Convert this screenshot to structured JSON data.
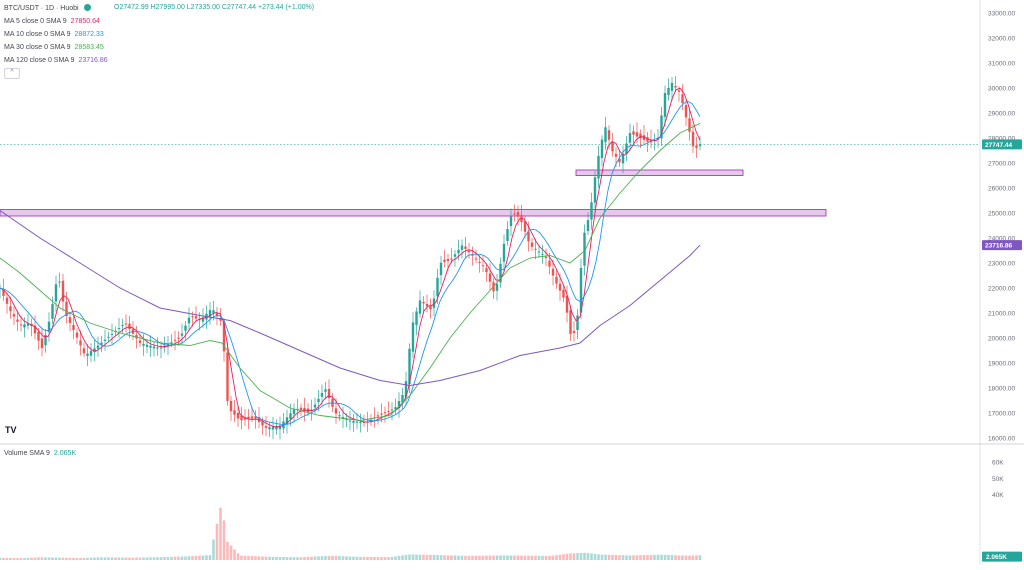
{
  "header": {
    "symbol": "BTC/USDT · 1D · Huobi",
    "ohlc": "O27472.99 H27995.00 L27335.00 C27747.44 +273.44 (+1.00%)"
  },
  "indicators": [
    {
      "label": "MA 5 close 0 SMA 9",
      "value": "27850.64",
      "color": "#e91e63"
    },
    {
      "label": "MA 10 close 0 SMA 9",
      "value": "28872.33",
      "color": "#2196f3"
    },
    {
      "label": "MA 30 close 0 SMA 9",
      "value": "28583.45",
      "color": "#4caf50"
    },
    {
      "label": "MA 120 close 0 SMA 9",
      "value": "23716.86",
      "color": "#7e57c2"
    }
  ],
  "volume_label": "Volume SMA 9",
  "volume_value": "2.065K",
  "logo_text": "TV",
  "colors": {
    "up": "#26a69a",
    "down": "#ef5350",
    "zone_fill": "#e1bee7",
    "zone_stroke": "#9c27b0",
    "price_badge": "#26a69a",
    "ma120_badge": "#7e57c2"
  },
  "chart_data": {
    "type": "candlestick",
    "price_ylim": [
      16000,
      33000
    ],
    "price_ticks": [
      "33000.00",
      "32000.00",
      "31000.00",
      "30000.00",
      "29000.00",
      "28000.00",
      "27000.00",
      "26000.00",
      "25000.00",
      "24000.00",
      "23000.00",
      "22000.00",
      "21000.00",
      "20000.00",
      "19000.00",
      "18000.00",
      "17000.00",
      "16000.00"
    ],
    "last_price": "27747.44",
    "ma120_last": "23716.86",
    "volume_ylim": [
      0,
      60000
    ],
    "volume_ticks": [
      "60K",
      "50K",
      "40K",
      "2.065K"
    ],
    "ma120_path": [
      [
        0,
        25100
      ],
      [
        40,
        24000
      ],
      [
        80,
        23000
      ],
      [
        120,
        22000
      ],
      [
        160,
        21200
      ],
      [
        200,
        20900
      ],
      [
        230,
        20700
      ],
      [
        260,
        20200
      ],
      [
        300,
        19500
      ],
      [
        340,
        18800
      ],
      [
        380,
        18300
      ],
      [
        410,
        18100
      ],
      [
        440,
        18300
      ],
      [
        480,
        18700
      ],
      [
        520,
        19300
      ],
      [
        560,
        19600
      ],
      [
        580,
        19800
      ],
      [
        600,
        20500
      ],
      [
        630,
        21300
      ],
      [
        660,
        22300
      ],
      [
        690,
        23300
      ],
      [
        700,
        23716.86
      ]
    ],
    "zones": [
      {
        "x_start": 0,
        "x_end": 826,
        "low": 24880,
        "high": 25140
      },
      {
        "x_start": 576,
        "x_end": 743,
        "low": 26500,
        "high": 26720
      }
    ],
    "close_path": [
      [
        0,
        22000
      ],
      [
        10,
        21100
      ],
      [
        20,
        20500
      ],
      [
        30,
        20600
      ],
      [
        42,
        19600
      ],
      [
        50,
        20800
      ],
      [
        58,
        22600
      ],
      [
        65,
        21000
      ],
      [
        75,
        20200
      ],
      [
        85,
        19300
      ],
      [
        95,
        19600
      ],
      [
        110,
        20100
      ],
      [
        125,
        20600
      ],
      [
        140,
        19800
      ],
      [
        160,
        19600
      ],
      [
        180,
        20000
      ],
      [
        190,
        20900
      ],
      [
        200,
        20700
      ],
      [
        212,
        21200
      ],
      [
        222,
        20600
      ],
      [
        228,
        17200
      ],
      [
        240,
        16700
      ],
      [
        255,
        16800
      ],
      [
        265,
        16400
      ],
      [
        280,
        16500
      ],
      [
        295,
        17200
      ],
      [
        310,
        17000
      ],
      [
        325,
        18000
      ],
      [
        335,
        17000
      ],
      [
        350,
        16700
      ],
      [
        365,
        16600
      ],
      [
        380,
        16900
      ],
      [
        395,
        17200
      ],
      [
        405,
        17900
      ],
      [
        412,
        20500
      ],
      [
        420,
        21500
      ],
      [
        432,
        21100
      ],
      [
        440,
        23000
      ],
      [
        450,
        23100
      ],
      [
        462,
        23700
      ],
      [
        475,
        23200
      ],
      [
        485,
        22800
      ],
      [
        495,
        21700
      ],
      [
        505,
        24000
      ],
      [
        512,
        25000
      ],
      [
        520,
        24800
      ],
      [
        530,
        23700
      ],
      [
        545,
        23300
      ],
      [
        555,
        22300
      ],
      [
        565,
        21500
      ],
      [
        572,
        19800
      ],
      [
        578,
        21000
      ],
      [
        583,
        24000
      ],
      [
        590,
        25000
      ],
      [
        597,
        27000
      ],
      [
        605,
        28500
      ],
      [
        612,
        27500
      ],
      [
        620,
        27000
      ],
      [
        630,
        28200
      ],
      [
        640,
        28000
      ],
      [
        650,
        27800
      ],
      [
        658,
        28000
      ],
      [
        665,
        29800
      ],
      [
        672,
        30200
      ],
      [
        680,
        29800
      ],
      [
        688,
        28500
      ],
      [
        694,
        27500
      ],
      [
        700,
        27747.44
      ]
    ],
    "ma30_path": [
      [
        0,
        23200
      ],
      [
        20,
        22600
      ],
      [
        40,
        21900
      ],
      [
        60,
        21200
      ],
      [
        90,
        20600
      ],
      [
        120,
        20200
      ],
      [
        160,
        19800
      ],
      [
        190,
        19700
      ],
      [
        210,
        19900
      ],
      [
        222,
        19800
      ],
      [
        240,
        18800
      ],
      [
        260,
        17900
      ],
      [
        290,
        17200
      ],
      [
        320,
        16900
      ],
      [
        360,
        16700
      ],
      [
        390,
        16900
      ],
      [
        410,
        17700
      ],
      [
        430,
        18800
      ],
      [
        450,
        20000
      ],
      [
        470,
        21000
      ],
      [
        490,
        21900
      ],
      [
        510,
        22800
      ],
      [
        530,
        23200
      ],
      [
        550,
        23300
      ],
      [
        570,
        23000
      ],
      [
        585,
        23500
      ],
      [
        600,
        24800
      ],
      [
        620,
        25800
      ],
      [
        640,
        26700
      ],
      [
        660,
        27500
      ],
      [
        680,
        28200
      ],
      [
        700,
        28583.45
      ]
    ],
    "volume": [
      [
        0,
        2200
      ],
      [
        20,
        1800
      ],
      [
        40,
        2500
      ],
      [
        60,
        2000
      ],
      [
        80,
        1600
      ],
      [
        100,
        2100
      ],
      [
        130,
        1700
      ],
      [
        160,
        1900
      ],
      [
        190,
        2400
      ],
      [
        210,
        3000
      ],
      [
        222,
        36000
      ],
      [
        226,
        12000
      ],
      [
        240,
        2600
      ],
      [
        270,
        1800
      ],
      [
        300,
        1500
      ],
      [
        330,
        2200
      ],
      [
        360,
        1600
      ],
      [
        390,
        1400
      ],
      [
        410,
        2700
      ],
      [
        440,
        2300
      ],
      [
        470,
        1900
      ],
      [
        500,
        2100
      ],
      [
        520,
        2000
      ],
      [
        550,
        1800
      ],
      [
        570,
        2900
      ],
      [
        585,
        3200
      ],
      [
        600,
        2400
      ],
      [
        630,
        2000
      ],
      [
        660,
        2300
      ],
      [
        690,
        1900
      ],
      [
        700,
        2065
      ]
    ]
  }
}
